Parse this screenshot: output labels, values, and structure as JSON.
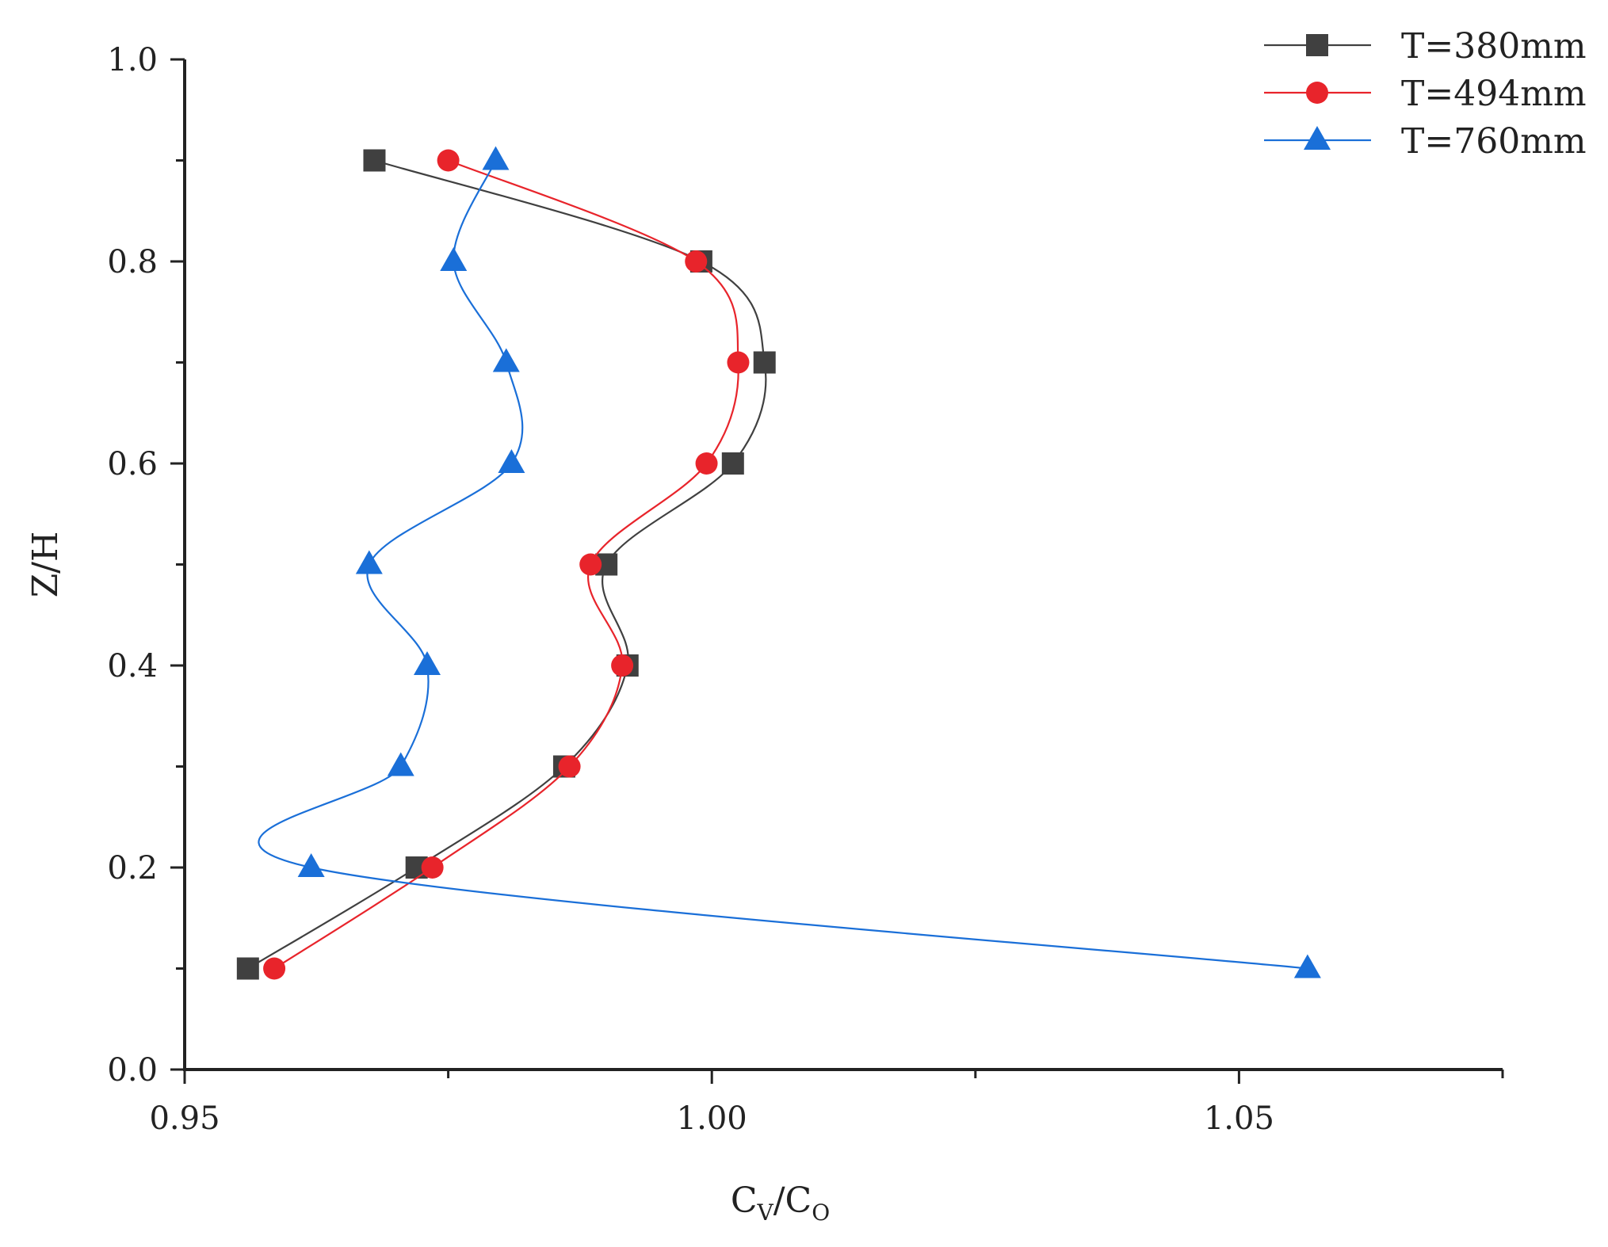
{
  "chart_data": {
    "type": "line",
    "title": "",
    "xlabel": {
      "main": "C",
      "sub1": "V",
      "sep": "/C",
      "sub2": "O"
    },
    "ylabel": "Z/H",
    "xlim": [
      0.95,
      1.075
    ],
    "ylim": [
      0.0,
      1.0
    ],
    "x_ticks": [
      0.95,
      1.0,
      1.05
    ],
    "x_tick_labels": [
      "0.95",
      "1.00",
      "1.05"
    ],
    "x_minor_ticks": [
      0.975,
      1.025,
      1.075
    ],
    "y_ticks": [
      0.0,
      0.2,
      0.4,
      0.6,
      0.8,
      1.0
    ],
    "y_tick_labels": [
      "0.0",
      "0.2",
      "0.4",
      "0.6",
      "0.8",
      "1.0"
    ],
    "y_minor_ticks": [
      0.1,
      0.3,
      0.5,
      0.7,
      0.9
    ],
    "grid": false,
    "legend_position": "top-right",
    "series": [
      {
        "name": "T=380mm",
        "color": "#404040",
        "marker": "square",
        "x": [
          0.956,
          0.972,
          0.986,
          0.992,
          0.99,
          1.002,
          1.005,
          0.999,
          0.968
        ],
        "y": [
          0.1,
          0.2,
          0.3,
          0.4,
          0.5,
          0.6,
          0.7,
          0.8,
          0.9
        ]
      },
      {
        "name": "T=494mm",
        "color": "#e8242b",
        "marker": "circle",
        "x": [
          0.9585,
          0.9735,
          0.9865,
          0.9915,
          0.9885,
          0.9995,
          1.0025,
          0.9985,
          0.975
        ],
        "y": [
          0.1,
          0.2,
          0.3,
          0.4,
          0.5,
          0.6,
          0.7,
          0.8,
          0.9
        ]
      },
      {
        "name": "T=760mm",
        "color": "#1a6fd8",
        "marker": "triangle",
        "x": [
          1.0565,
          0.962,
          0.9705,
          0.973,
          0.9675,
          0.981,
          0.9805,
          0.9755,
          0.9795
        ],
        "y": [
          0.1,
          0.2,
          0.3,
          0.4,
          0.5,
          0.6,
          0.7,
          0.8,
          0.9
        ]
      }
    ]
  }
}
